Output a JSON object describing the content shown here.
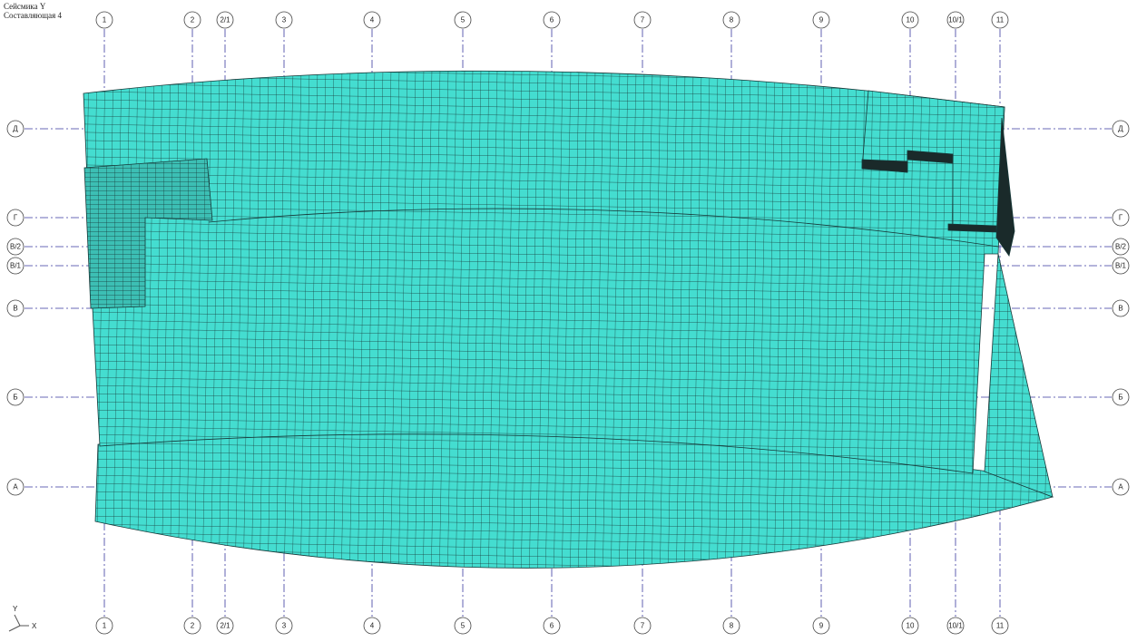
{
  "header": {
    "line1": "Сейсмика Y",
    "line2": "Составляющая  4"
  },
  "grid_axes": {
    "columns": [
      "1",
      "2",
      "2/1",
      "3",
      "4",
      "5",
      "6",
      "7",
      "8",
      "9",
      "10",
      "10/1",
      "11"
    ],
    "rows": [
      "Д",
      "Г",
      "В/2",
      "В/1",
      "В",
      "Б",
      "А"
    ]
  },
  "triad": {
    "y": "Y",
    "x": "X"
  }
}
